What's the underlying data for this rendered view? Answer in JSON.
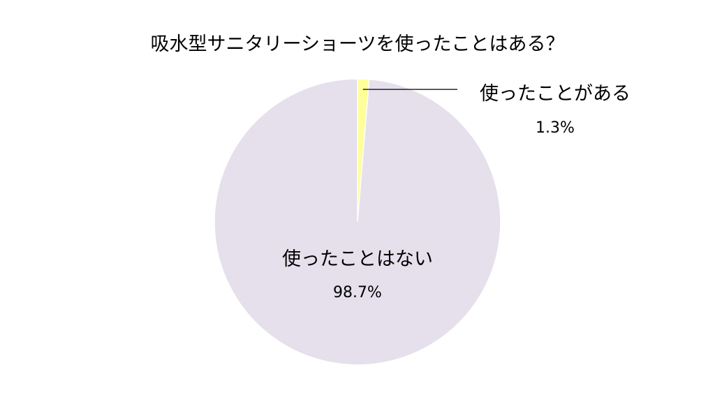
{
  "chart_data": {
    "type": "pie",
    "title": "吸水型サニタリーショーツを使ったことはある？",
    "categories": [
      "使ったことがある",
      "使ったことはない"
    ],
    "values": [
      1.3,
      98.7
    ],
    "value_labels": [
      "1.3%",
      "98.7%"
    ],
    "colors": [
      "#ffff99",
      "#e5e0ec"
    ]
  }
}
